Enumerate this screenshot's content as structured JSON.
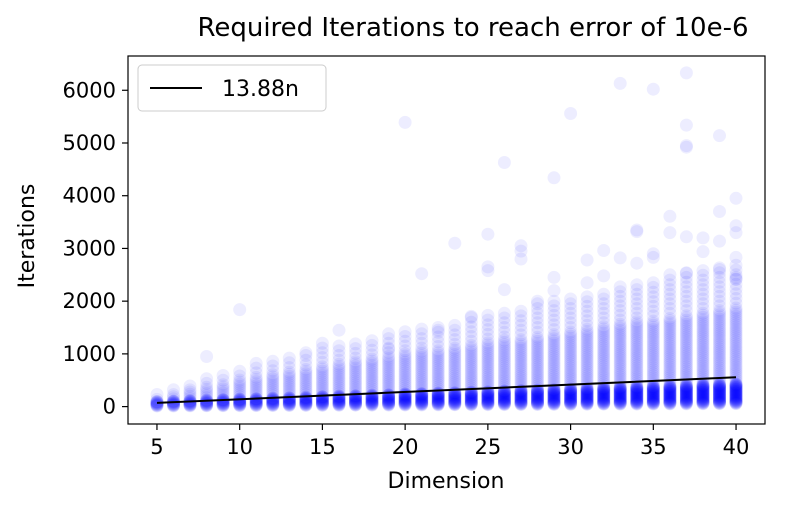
{
  "chart_data": {
    "type": "scatter",
    "title": "Required Iterations to reach error of 10e-6",
    "xlabel": "Dimension",
    "ylabel": "Iterations",
    "xlim": [
      3.25,
      41.75
    ],
    "ylim": [
      -330,
      6650
    ],
    "x_ticks": [
      5,
      10,
      15,
      20,
      25,
      30,
      35,
      40
    ],
    "y_ticks": [
      0,
      1000,
      2000,
      3000,
      4000,
      5000,
      6000
    ],
    "grid": false,
    "legend": {
      "placement": "top-left",
      "entries": [
        "13.88n"
      ]
    },
    "series": [
      {
        "kind": "scatter",
        "color": "#0000ff",
        "alpha": 0.07,
        "typical_max_per_dimension": [
          [
            5,
            170
          ],
          [
            6,
            260
          ],
          [
            7,
            330
          ],
          [
            8,
            380
          ],
          [
            9,
            440
          ],
          [
            10,
            520
          ],
          [
            11,
            580
          ],
          [
            12,
            620
          ],
          [
            13,
            680
          ],
          [
            14,
            730
          ],
          [
            15,
            780
          ],
          [
            16,
            820
          ],
          [
            17,
            860
          ],
          [
            18,
            920
          ],
          [
            19,
            960
          ],
          [
            20,
            1000
          ],
          [
            21,
            1050
          ],
          [
            22,
            1080
          ],
          [
            23,
            1120
          ],
          [
            24,
            1180
          ],
          [
            25,
            1220
          ],
          [
            26,
            1260
          ],
          [
            27,
            1300
          ],
          [
            28,
            1350
          ],
          [
            29,
            1400
          ],
          [
            30,
            1440
          ],
          [
            31,
            1480
          ],
          [
            32,
            1530
          ],
          [
            33,
            1580
          ],
          [
            34,
            1620
          ],
          [
            35,
            1660
          ],
          [
            36,
            1710
          ],
          [
            37,
            1760
          ],
          [
            38,
            1800
          ],
          [
            39,
            1850
          ],
          [
            40,
            1900
          ]
        ],
        "outliers": [
          [
            8,
            950
          ],
          [
            10,
            1840
          ],
          [
            14,
            1020
          ],
          [
            15,
            1200
          ],
          [
            16,
            1450
          ],
          [
            19,
            1090
          ],
          [
            20,
            5390
          ],
          [
            21,
            2520
          ],
          [
            22,
            1450
          ],
          [
            23,
            3100
          ],
          [
            24,
            1710
          ],
          [
            25,
            3270
          ],
          [
            25,
            2650
          ],
          [
            25,
            2580
          ],
          [
            26,
            4630
          ],
          [
            26,
            2220
          ],
          [
            27,
            2950
          ],
          [
            27,
            3050
          ],
          [
            27,
            2800
          ],
          [
            28,
            2000
          ],
          [
            29,
            4340
          ],
          [
            29,
            2450
          ],
          [
            29,
            2200
          ],
          [
            30,
            5560
          ],
          [
            31,
            2780
          ],
          [
            31,
            2350
          ],
          [
            32,
            2960
          ],
          [
            32,
            2480
          ],
          [
            33,
            6130
          ],
          [
            33,
            2820
          ],
          [
            34,
            3350
          ],
          [
            34,
            3320
          ],
          [
            34,
            2720
          ],
          [
            35,
            6020
          ],
          [
            35,
            2900
          ],
          [
            35,
            2830
          ],
          [
            36,
            3610
          ],
          [
            36,
            3300
          ],
          [
            36,
            2500
          ],
          [
            37,
            6330
          ],
          [
            37,
            5340
          ],
          [
            37,
            4950
          ],
          [
            37,
            4920
          ],
          [
            37,
            3220
          ],
          [
            37,
            2530
          ],
          [
            38,
            3200
          ],
          [
            38,
            2940
          ],
          [
            39,
            5140
          ],
          [
            39,
            3700
          ],
          [
            39,
            3140
          ],
          [
            39,
            2600
          ],
          [
            40,
            3950
          ],
          [
            40,
            3430
          ],
          [
            40,
            3300
          ],
          [
            40,
            2830
          ],
          [
            40,
            2450
          ],
          [
            40,
            2420
          ]
        ]
      },
      {
        "name": "13.88n",
        "kind": "line",
        "color": "#000000",
        "x": [
          5,
          40
        ],
        "y": [
          69.4,
          555.2
        ]
      }
    ]
  }
}
